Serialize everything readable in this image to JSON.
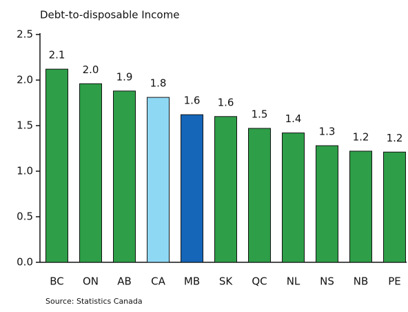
{
  "chart_data": {
    "type": "bar",
    "title": "Debt-to-disposable Income",
    "source": "Source: Statistics Canada",
    "categories": [
      "BC",
      "ON",
      "AB",
      "CA",
      "MB",
      "SK",
      "QC",
      "NL",
      "NS",
      "NB",
      "PE"
    ],
    "values": [
      2.12,
      1.96,
      1.88,
      1.81,
      1.62,
      1.6,
      1.47,
      1.42,
      1.28,
      1.22,
      1.21
    ],
    "value_labels": [
      "2.1",
      "2.0",
      "1.9",
      "1.8",
      "1.6",
      "1.6",
      "1.5",
      "1.4",
      "1.3",
      "1.2",
      "1.2"
    ],
    "colors": [
      "#2e9e48",
      "#2e9e48",
      "#2e9e48",
      "#8fd8f4",
      "#1565b8",
      "#2e9e48",
      "#2e9e48",
      "#2e9e48",
      "#2e9e48",
      "#2e9e48",
      "#2e9e48"
    ],
    "ylim": [
      0,
      2.5
    ],
    "yticks": [
      {
        "value": 0,
        "label": "0.0"
      },
      0.5,
      {
        "value": 1,
        "label": "1.0"
      },
      1.5,
      {
        "value": 2,
        "label": "2.0"
      },
      2.5
    ],
    "grid": false
  }
}
